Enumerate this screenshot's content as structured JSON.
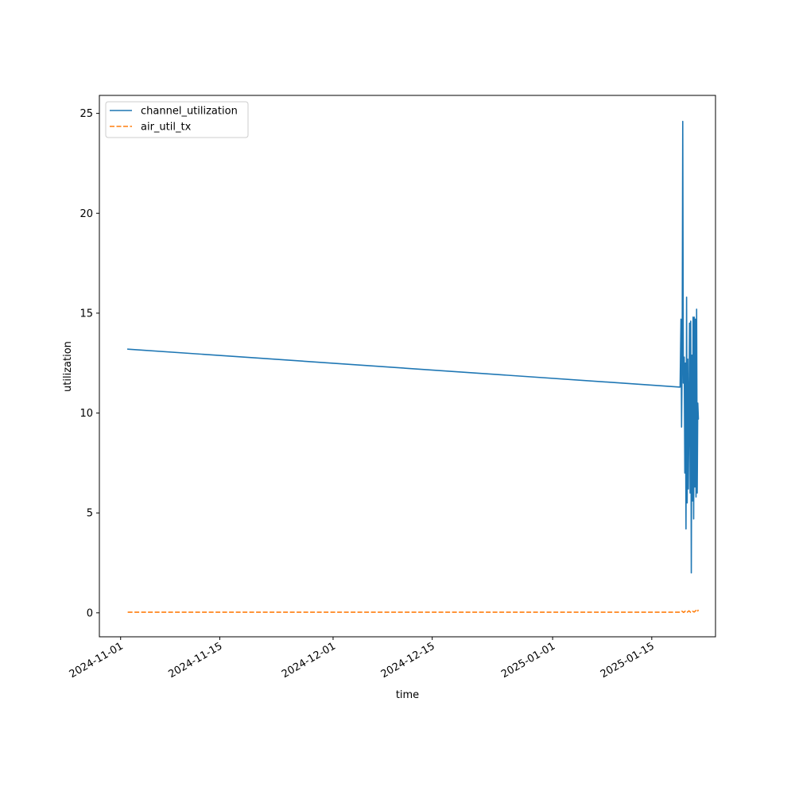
{
  "chart_data": {
    "type": "line",
    "title": "",
    "xlabel": "time",
    "ylabel": "utilization",
    "x_type": "date",
    "xlim": [
      "2024-10-29",
      "2025-01-24"
    ],
    "ylim": [
      -1.2,
      25.9
    ],
    "x_ticks": [
      "2024-11-01",
      "2024-11-15",
      "2024-12-01",
      "2024-12-15",
      "2025-01-01",
      "2025-01-15"
    ],
    "y_ticks": [
      0,
      5,
      10,
      15,
      20,
      25
    ],
    "grid": false,
    "legend_position": "upper-left",
    "series": [
      {
        "name": "channel_utilization",
        "color": "#1f77b4",
        "linestyle": "solid",
        "points": [
          [
            "2024-11-02T00:00",
            13.2
          ],
          [
            "2025-01-19T00:00",
            11.3
          ],
          [
            "2025-01-19T03:00",
            14.7
          ],
          [
            "2025-01-19T05:00",
            9.3
          ],
          [
            "2025-01-19T07:00",
            12.6
          ],
          [
            "2025-01-19T09:00",
            24.6
          ],
          [
            "2025-01-19T11:00",
            11.5
          ],
          [
            "2025-01-19T14:00",
            12.8
          ],
          [
            "2025-01-19T16:00",
            7.0
          ],
          [
            "2025-01-19T18:00",
            12.5
          ],
          [
            "2025-01-19T20:00",
            4.2
          ],
          [
            "2025-01-19T22:00",
            15.8
          ],
          [
            "2025-01-20T00:00",
            5.5
          ],
          [
            "2025-01-20T02:00",
            12.7
          ],
          [
            "2025-01-20T04:00",
            6.2
          ],
          [
            "2025-01-20T06:00",
            10.0
          ],
          [
            "2025-01-20T08:00",
            14.5
          ],
          [
            "2025-01-20T10:00",
            6.0
          ],
          [
            "2025-01-20T12:00",
            14.6
          ],
          [
            "2025-01-20T14:00",
            2.0
          ],
          [
            "2025-01-20T16:00",
            12.9
          ],
          [
            "2025-01-20T18:00",
            5.6
          ],
          [
            "2025-01-20T20:00",
            14.8
          ],
          [
            "2025-01-20T22:00",
            4.7
          ],
          [
            "2025-01-21T00:00",
            14.8
          ],
          [
            "2025-01-21T02:00",
            6.3
          ],
          [
            "2025-01-21T04:00",
            14.7
          ],
          [
            "2025-01-21T06:00",
            5.8
          ],
          [
            "2025-01-21T08:00",
            15.2
          ],
          [
            "2025-01-21T10:00",
            6.0
          ],
          [
            "2025-01-21T12:00",
            10.5
          ],
          [
            "2025-01-21T14:00",
            9.7
          ]
        ]
      },
      {
        "name": "air_util_tx",
        "color": "#ff7f0e",
        "linestyle": "dashed",
        "points": [
          [
            "2024-11-02T00:00",
            0.03
          ],
          [
            "2025-01-19T00:00",
            0.03
          ],
          [
            "2025-01-19T06:00",
            0.08
          ],
          [
            "2025-01-19T12:00",
            0.02
          ],
          [
            "2025-01-19T18:00",
            0.09
          ],
          [
            "2025-01-20T00:00",
            0.03
          ],
          [
            "2025-01-20T06:00",
            0.1
          ],
          [
            "2025-01-20T12:00",
            0.02
          ],
          [
            "2025-01-20T18:00",
            0.08
          ],
          [
            "2025-01-21T00:00",
            0.04
          ],
          [
            "2025-01-21T06:00",
            0.12
          ],
          [
            "2025-01-21T10:00",
            0.05
          ],
          [
            "2025-01-21T14:00",
            0.15
          ]
        ]
      }
    ]
  }
}
